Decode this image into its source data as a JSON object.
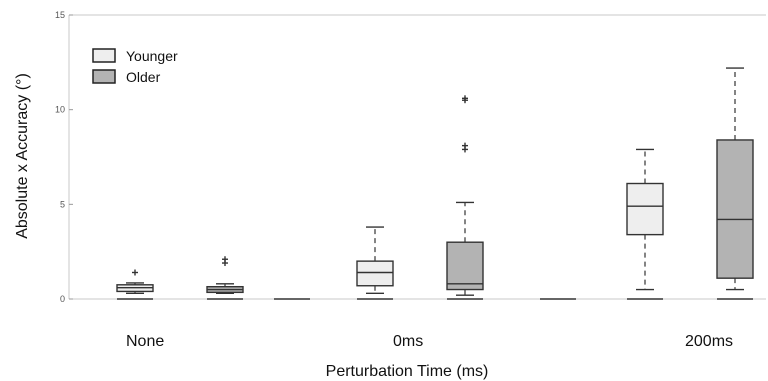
{
  "chart_data": {
    "type": "box",
    "categories": [
      "None",
      "0ms",
      "200ms"
    ],
    "xlabel": "Perturbation Time (ms)",
    "ylabel": "Absolute x Accuracy (°)",
    "ylim": [
      0,
      15
    ],
    "yticks": [
      0,
      5,
      10,
      15
    ],
    "grid": false,
    "legend_position": "top-left",
    "series": [
      {
        "name": "Younger",
        "color": "#eeeeee",
        "boxes": [
          {
            "category": "None",
            "min": 0.3,
            "q1": 0.4,
            "median": 0.6,
            "q3": 0.75,
            "max": 0.85,
            "outliers": [
              1.4
            ]
          },
          {
            "category": "0ms",
            "min": 0.3,
            "q1": 0.7,
            "median": 1.4,
            "q3": 2.0,
            "max": 3.8,
            "outliers": []
          },
          {
            "category": "200ms",
            "min": 0.5,
            "q1": 3.4,
            "median": 4.9,
            "q3": 6.1,
            "max": 7.9,
            "outliers": []
          }
        ]
      },
      {
        "name": "Older",
        "color": "#b3b3b3",
        "boxes": [
          {
            "category": "None",
            "min": 0.3,
            "q1": 0.35,
            "median": 0.5,
            "q3": 0.65,
            "max": 0.8,
            "outliers": [
              1.9,
              2.1
            ]
          },
          {
            "category": "0ms",
            "min": 0.2,
            "q1": 0.5,
            "median": 0.8,
            "q3": 3.0,
            "max": 5.1,
            "outliers": [
              7.9,
              8.1,
              10.5,
              10.6
            ]
          },
          {
            "category": "200ms",
            "min": 0.5,
            "q1": 1.1,
            "median": 4.2,
            "q3": 8.4,
            "max": 12.2,
            "outliers": []
          }
        ]
      }
    ],
    "zero_bars": [
      {
        "position": "None",
        "series": "Younger",
        "value": 0
      },
      {
        "position": "None",
        "series": "Older",
        "value": 0
      },
      {
        "position": "gap",
        "value": 0
      },
      {
        "position": "0ms",
        "series": "Younger",
        "value": 0
      },
      {
        "position": "0ms",
        "series": "Older",
        "value": 0
      },
      {
        "position": "gap",
        "value": 0
      },
      {
        "position": "200ms",
        "series": "Younger",
        "value": 0
      },
      {
        "position": "200ms",
        "series": "Older",
        "value": 0
      }
    ]
  }
}
